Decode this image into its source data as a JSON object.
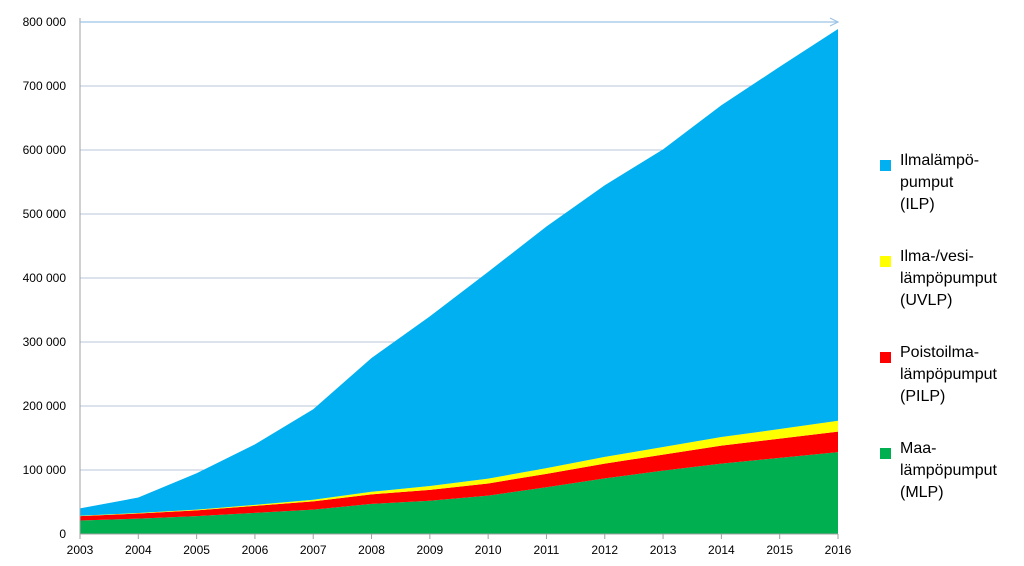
{
  "chart_data": {
    "type": "area",
    "stacked": true,
    "x": [
      "2003",
      "2004",
      "2005",
      "2006",
      "2007",
      "2008",
      "2009",
      "2010",
      "2011",
      "2012",
      "2013",
      "2014",
      "2015",
      "2016"
    ],
    "ylim": [
      0,
      800000
    ],
    "yticks": [
      0,
      100000,
      200000,
      300000,
      400000,
      500000,
      600000,
      700000,
      800000
    ],
    "ytick_labels": [
      "0",
      "100 000",
      "200 000",
      "300 000",
      "400 000",
      "500 000",
      "600 000",
      "700 000",
      "800 000"
    ],
    "grid": true,
    "legend_position": "right",
    "series": [
      {
        "name": "Maa-\nlämpöpumput\n(MLP)",
        "color": "#00b050",
        "values": [
          21000,
          24000,
          28000,
          33000,
          38000,
          47000,
          52000,
          60000,
          73000,
          87000,
          99000,
          110000,
          119000,
          128000
        ]
      },
      {
        "name": "Poistoilma-\nlämpöpumput\n(PILP)",
        "color": "#ff0000",
        "values": [
          7000,
          8000,
          9000,
          11000,
          13000,
          15000,
          17000,
          19000,
          21000,
          23000,
          25000,
          28000,
          30000,
          32000
        ]
      },
      {
        "name": "Ilma-/vesi-\nlämpöpumput\n(UVLP)",
        "color": "#ffff00",
        "values": [
          500,
          800,
          1000,
          1500,
          2500,
          4000,
          6000,
          7500,
          9000,
          10500,
          12000,
          13500,
          15000,
          17000
        ]
      },
      {
        "name": "Ilmalämpö-\npumput\n(ILP)",
        "color": "#00b0f0",
        "values": [
          11500,
          24200,
          57000,
          94500,
          141500,
          209000,
          265000,
          323000,
          377500,
          424500,
          465000,
          518500,
          566000,
          612000
        ]
      }
    ]
  }
}
